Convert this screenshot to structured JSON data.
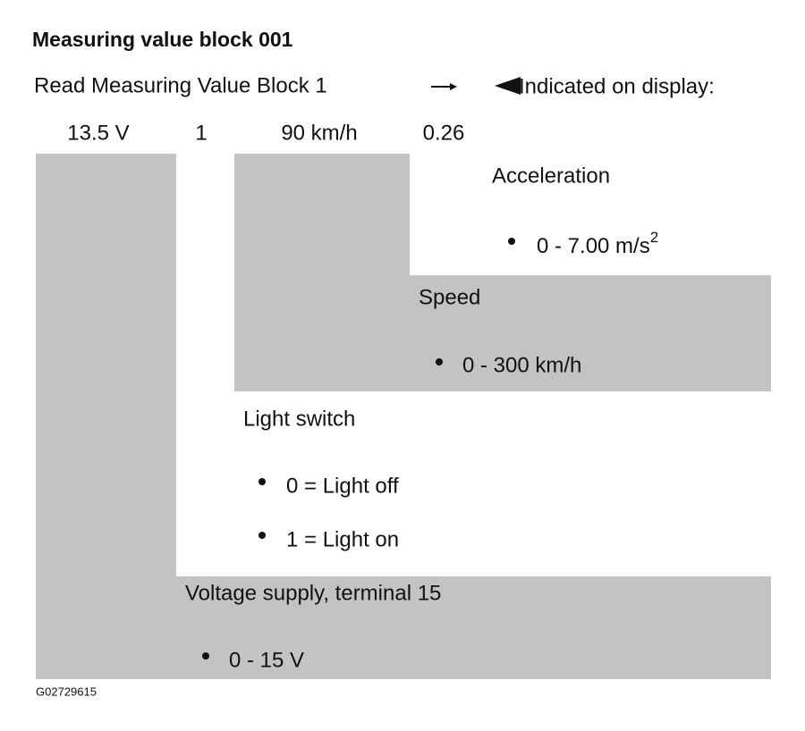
{
  "header": {
    "title": "Measuring value block 001",
    "instruction": "Read Measuring Value Block 1",
    "indicated": "Indicated on display:"
  },
  "display_values": [
    "13.5 V",
    "1",
    "90 km/h",
    "0.26"
  ],
  "fields": {
    "acceleration": {
      "label": "Acceleration",
      "range": "0 - 7.00 m/s",
      "exponent": "2"
    },
    "speed": {
      "label": "Speed",
      "range": "0 - 300 km/h"
    },
    "light_switch": {
      "label": "Light switch",
      "items": [
        "0 = Light off",
        "1 = Light on"
      ]
    },
    "voltage": {
      "label": "Voltage supply, terminal 15",
      "range": "0 - 15 V"
    }
  },
  "figure_code": "G02729615"
}
